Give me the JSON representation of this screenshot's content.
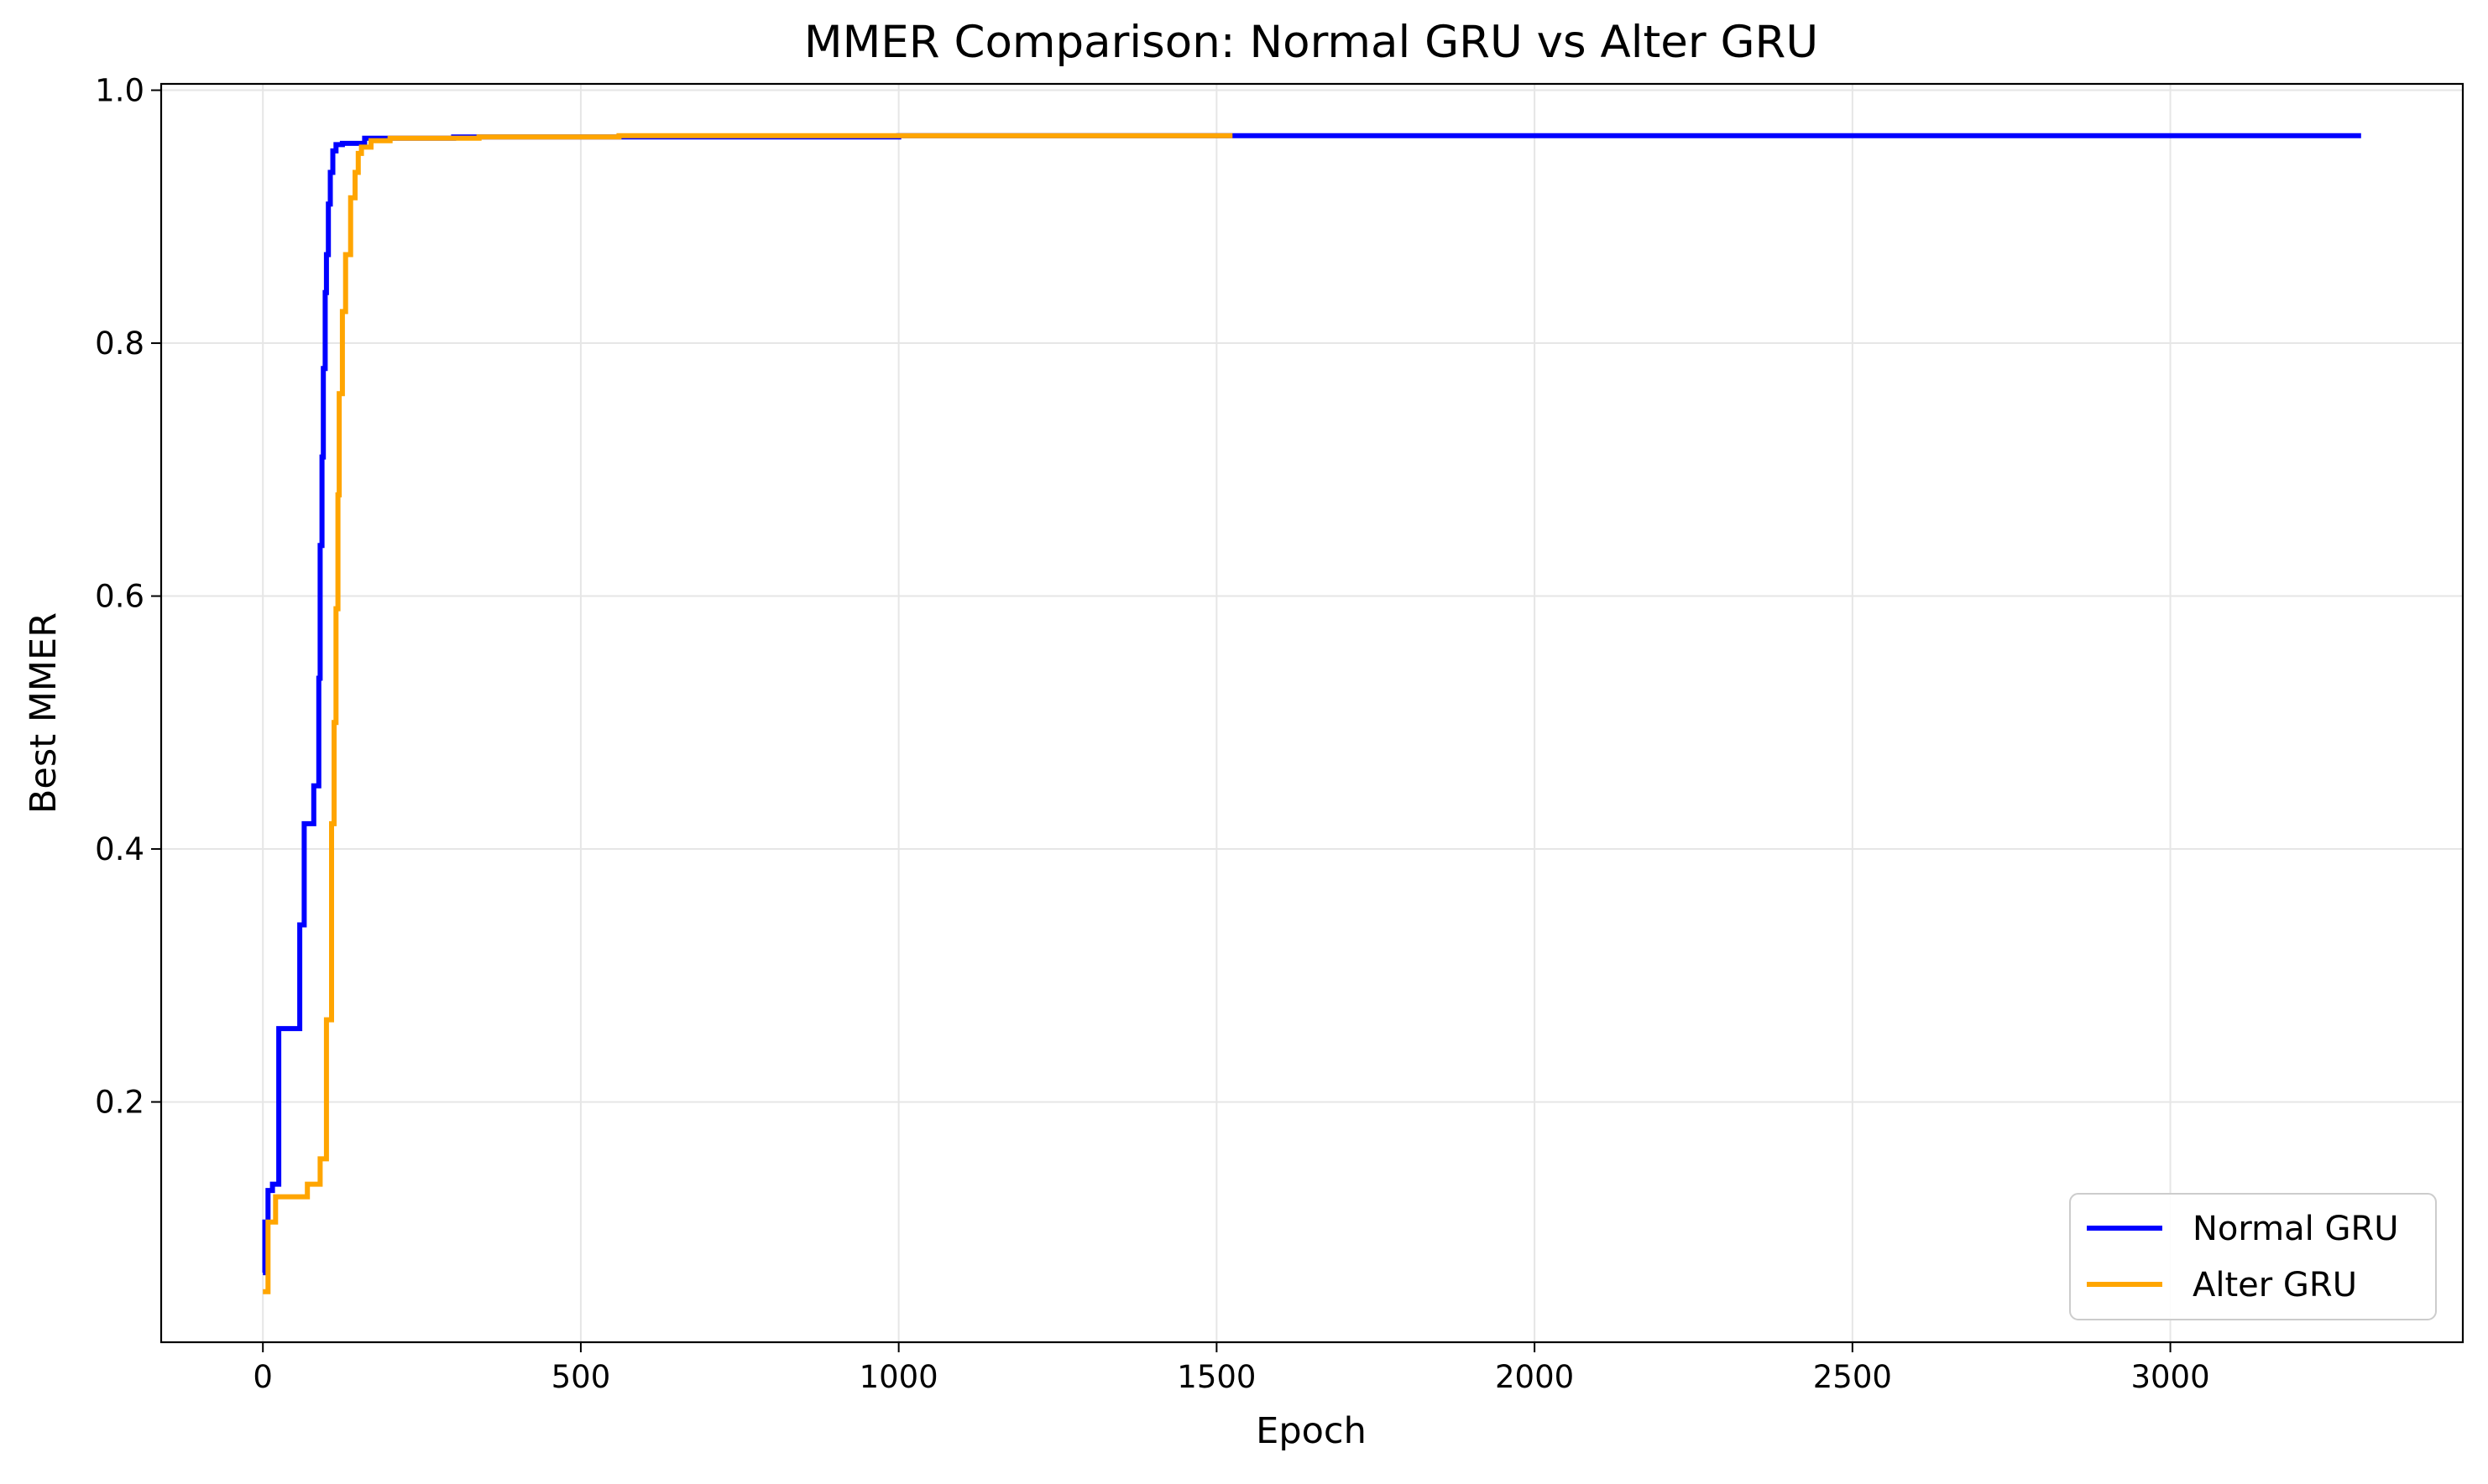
{
  "chart_data": {
    "type": "line",
    "title": "MMER Comparison: Normal GRU vs Alter GRU",
    "xlabel": "Epoch",
    "ylabel": "Best MMER",
    "xlim": [
      -160,
      3460
    ],
    "ylim": [
      0.01,
      1.005
    ],
    "xticks": [
      0,
      500,
      1000,
      1500,
      2000,
      2500,
      3000
    ],
    "yticks": [
      0.2,
      0.4,
      0.6,
      0.8,
      1.0
    ],
    "ytick_labels": [
      "0.2",
      "0.4",
      "0.6",
      "0.8",
      "1.0"
    ],
    "grid": true,
    "legend_position": "bottom-right",
    "series": [
      {
        "name": "Normal GRU",
        "color": "#0000ff",
        "step": true,
        "x": [
          0,
          3,
          8,
          15,
          25,
          58,
          65,
          72,
          80,
          88,
          90,
          93,
          95,
          98,
          100,
          103,
          106,
          110,
          115,
          120,
          125,
          130,
          160,
          300,
          480,
          1000,
          1525,
          3300
        ],
        "y": [
          0.065,
          0.105,
          0.13,
          0.135,
          0.258,
          0.34,
          0.42,
          0.42,
          0.45,
          0.535,
          0.64,
          0.71,
          0.78,
          0.84,
          0.87,
          0.91,
          0.935,
          0.952,
          0.957,
          0.957,
          0.958,
          0.958,
          0.962,
          0.963,
          0.963,
          0.964,
          0.964,
          0.964
        ]
      },
      {
        "name": "Alter GRU",
        "color": "#ffa500",
        "step": true,
        "x": [
          0,
          8,
          20,
          30,
          50,
          70,
          90,
          100,
          105,
          108,
          112,
          115,
          118,
          120,
          125,
          130,
          138,
          145,
          150,
          155,
          160,
          170,
          185,
          200,
          250,
          340,
          560,
          1000,
          1525
        ],
        "y": [
          0.05,
          0.105,
          0.125,
          0.125,
          0.125,
          0.135,
          0.155,
          0.265,
          0.265,
          0.42,
          0.5,
          0.59,
          0.68,
          0.76,
          0.825,
          0.87,
          0.915,
          0.935,
          0.95,
          0.955,
          0.955,
          0.96,
          0.96,
          0.962,
          0.962,
          0.963,
          0.964,
          0.964,
          0.964
        ]
      }
    ]
  }
}
